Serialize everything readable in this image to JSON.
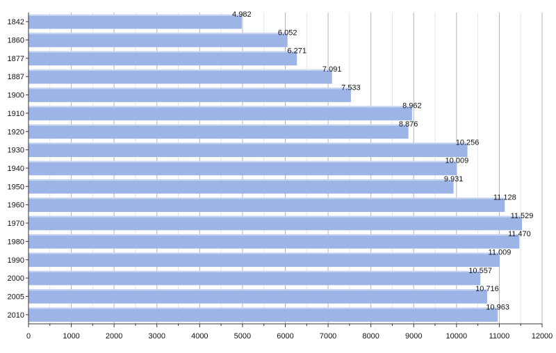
{
  "chart_data": {
    "type": "bar",
    "orientation": "horizontal",
    "categories": [
      "1842",
      "1860",
      "1877",
      "1887",
      "1900",
      "1910",
      "1920",
      "1930",
      "1940",
      "1950",
      "1960",
      "1970",
      "1980",
      "1990",
      "2000",
      "2005",
      "2010"
    ],
    "values": [
      4982,
      6052,
      6271,
      7091,
      7533,
      8962,
      8876,
      10256,
      10009,
      9931,
      11128,
      11529,
      11470,
      11009,
      10557,
      10716,
      10963
    ],
    "value_labels": [
      "4.982",
      "6.052",
      "6.271",
      "7.091",
      "7.533",
      "8.962",
      "8.876",
      "10.256",
      "10.009",
      "9.931",
      "11.128",
      "11.529",
      "11.470",
      "11.009",
      "10.557",
      "10.716",
      "10.963"
    ],
    "xlim": [
      0,
      12000
    ],
    "x_ticks": [
      "0",
      "1000",
      "2000",
      "3000",
      "4000",
      "5000",
      "6000",
      "7000",
      "8000",
      "9000",
      "10000",
      "11000",
      "12000"
    ],
    "title": "",
    "xlabel": "",
    "ylabel": "",
    "grid": "vertical",
    "bar_color": "#9cb4e6",
    "grid_color": "#c8c8c8"
  }
}
